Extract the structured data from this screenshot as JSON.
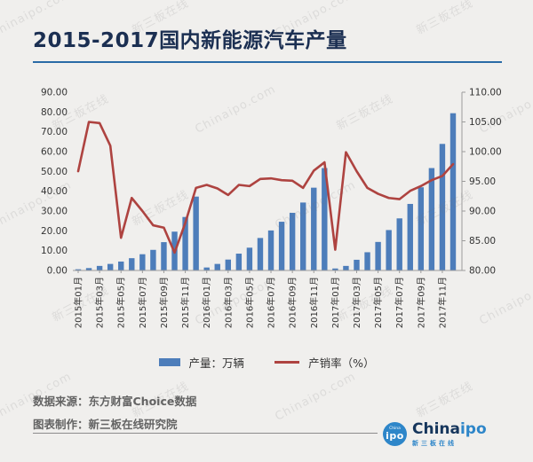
{
  "title": "2015-2017国内新能源汽车产量",
  "legend": {
    "bars": "产量：万辆",
    "line": "产销率（%）"
  },
  "footer": {
    "source": "数据来源：东方财富Choice数据",
    "maker": "图表制作：新三板在线研究院"
  },
  "logo": {
    "badge_top": "China",
    "badge_main": "ipo",
    "brand_primary": "China",
    "brand_secondary": "ipo",
    "subtext": "新三板在线"
  },
  "watermark": {
    "texts": [
      "Chinaipo.com",
      "新三板在线"
    ]
  },
  "colors": {
    "background": "#f0efed",
    "bar": "#4d7dba",
    "line": "#ae4340",
    "title_text": "#1b2f52",
    "accent_rule": "#2a6ba6",
    "axis_line": "#9b9b9b",
    "axis_text": "#333333",
    "footer_text": "#636363",
    "logo_blue": "#2e86c9",
    "logo_navy": "#16365c"
  },
  "chart_data": {
    "type": "bar+line combo",
    "categories": [
      "2015年01月",
      "2015年02月",
      "2015年03月",
      "2015年04月",
      "2015年05月",
      "2015年06月",
      "2015年07月",
      "2015年08月",
      "2015年09月",
      "2015年10月",
      "2015年11月",
      "2015年12月",
      "2016年01月",
      "2016年02月",
      "2016年03月",
      "2016年04月",
      "2016年05月",
      "2016年06月",
      "2016年07月",
      "2016年08月",
      "2016年09月",
      "2016年10月",
      "2016年11月",
      "2016年12月",
      "2017年01月",
      "2017年02月",
      "2017年03月",
      "2017年04月",
      "2017年05月",
      "2017年06月",
      "2017年07月",
      "2017年08月",
      "2017年09月",
      "2017年10月",
      "2017年11月",
      "2017年12月"
    ],
    "x_tick_labels": [
      "2015年01月",
      "2015年03月",
      "2015年05月",
      "2015年07月",
      "2015年09月",
      "2015年11月",
      "2016年01月",
      "2016年03月",
      "2016年05月",
      "2016年07月",
      "2016年09月",
      "2016年11月",
      "2017年01月",
      "2017年03月",
      "2017年05月",
      "2017年07月",
      "2017年09月",
      "2017年11月"
    ],
    "series": [
      {
        "name": "产量：万辆",
        "type": "bar",
        "axis": "left",
        "values": [
          0.6,
          1.2,
          2.3,
          3.3,
          4.5,
          6.2,
          8.2,
          10.4,
          14.3,
          19.6,
          27.0,
          37.3,
          1.5,
          3.3,
          5.5,
          8.5,
          11.5,
          16.4,
          20.2,
          24.6,
          29.1,
          34.3,
          41.8,
          51.7,
          1.0,
          2.3,
          5.4,
          9.2,
          14.4,
          20.4,
          26.3,
          33.6,
          42.0,
          51.7,
          63.9,
          79.4
        ]
      },
      {
        "name": "产销率（%）",
        "type": "line",
        "axis": "right",
        "values": [
          96.7,
          105.0,
          104.8,
          101.0,
          85.5,
          92.2,
          90.0,
          87.6,
          87.2,
          83.0,
          88.0,
          93.9,
          94.4,
          93.8,
          92.7,
          94.4,
          94.2,
          95.4,
          95.5,
          95.2,
          95.1,
          93.9,
          96.8,
          98.2,
          83.5,
          99.9,
          96.7,
          93.9,
          92.9,
          92.2,
          92.0,
          93.4,
          94.2,
          95.2,
          95.9,
          97.9
        ]
      }
    ],
    "left_axis": {
      "min": 0,
      "max": 90,
      "step": 10,
      "tick_format": "0.00"
    },
    "right_axis": {
      "min": 80,
      "max": 110,
      "step": 5,
      "tick_format": "0.00"
    },
    "grid": false,
    "legend_position": "bottom"
  }
}
